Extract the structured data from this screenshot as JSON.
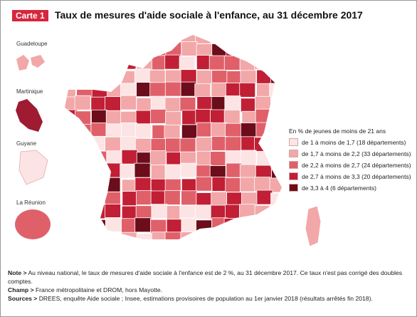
{
  "badge": "Carte 1",
  "title": "Taux de mesures d'aide sociale à l'enfance, au 31 décembre 2017",
  "territories": [
    "Guadeloupe",
    "Martinique",
    "Guyane",
    "La Réunion"
  ],
  "legend": {
    "title": "En % de jeunes de moins de 21 ans",
    "items": [
      {
        "label": "de 1 à moins de 1,7 (18 départements)",
        "color": "#fde4e4"
      },
      {
        "label": "de 1,7 à moins de 2,2 (33 départements)",
        "color": "#f2a7a9"
      },
      {
        "label": "de 2,2 à moins de 2,7 (24 départements)",
        "color": "#e0606a"
      },
      {
        "label": "de 2,7 à moins de 3,3 (20 départements)",
        "color": "#c11f35"
      },
      {
        "label": "de 3,3 à 4 (6 départements)",
        "color": "#6b0d1a"
      }
    ]
  },
  "notes": [
    {
      "label": "Note >",
      "text": "Au niveau national, le taux de mesures d'aide sociale à l'enfance est de 2 %, au 31 décembre 2017. Ce taux n'est pas corrigé des doubles comptes."
    },
    {
      "label": "Champ >",
      "text": "France métropolitaine et DROM, hors Mayotte."
    },
    {
      "label": "Sources >",
      "text": "DREES, enquête Aide sociale ; Insee, estimations provisoires de population au 1er janvier 2018 (résultats arrêtés fin 2018)."
    }
  ]
}
